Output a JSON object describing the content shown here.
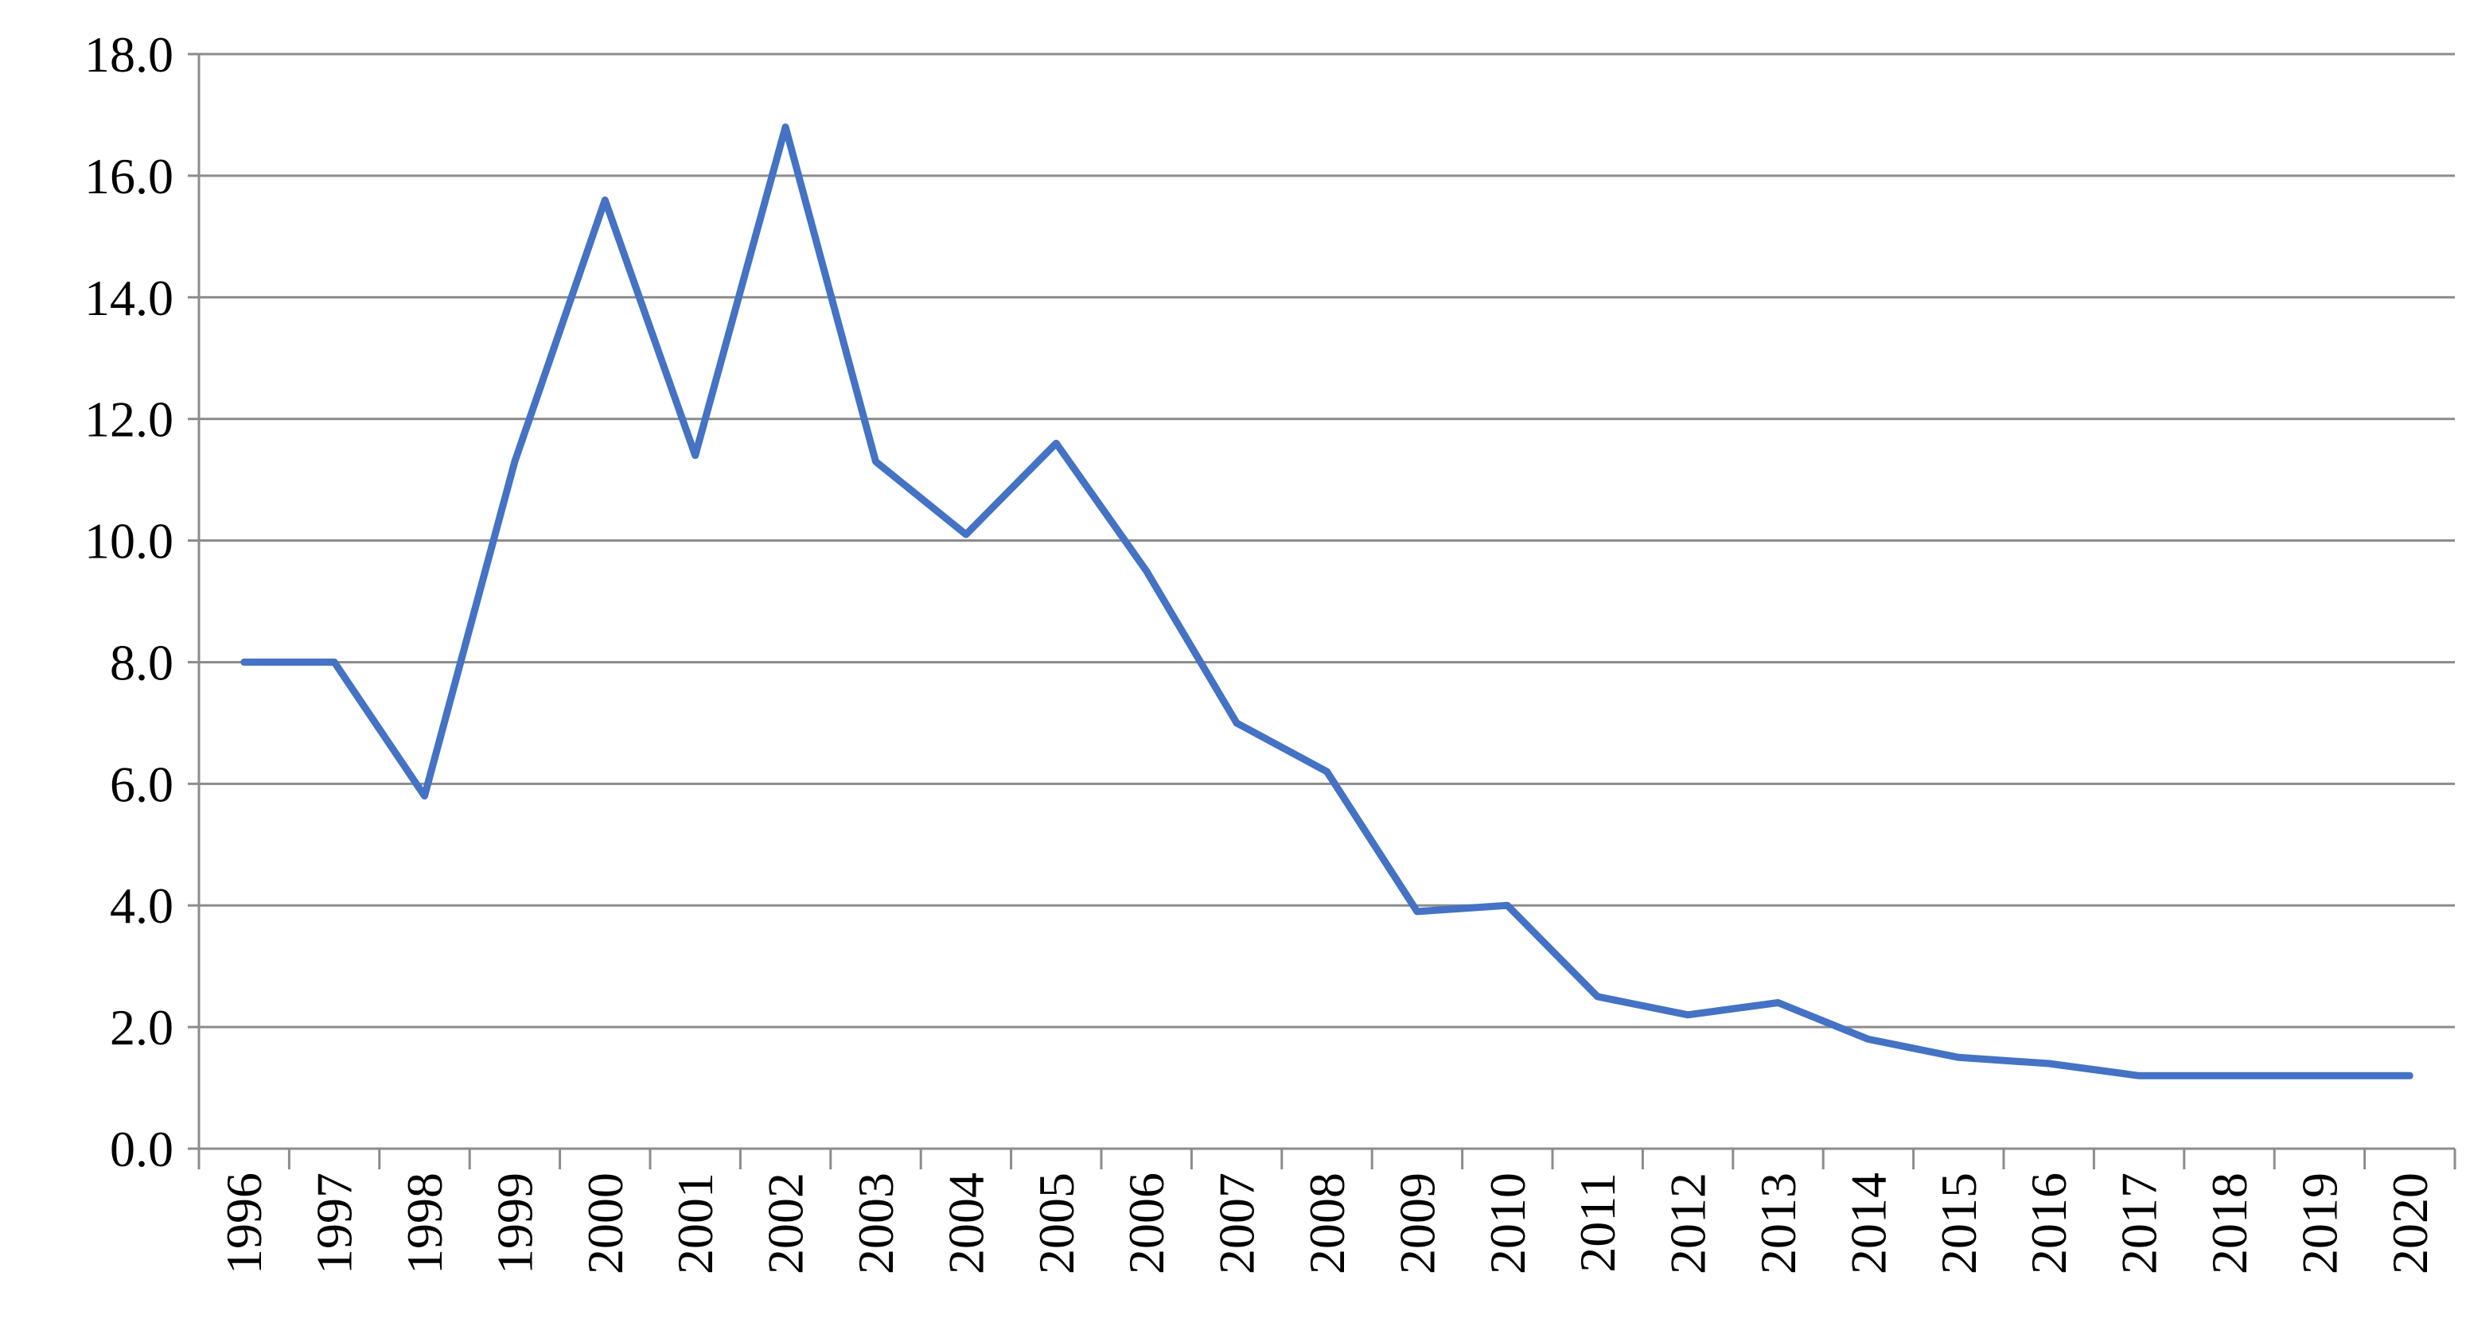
{
  "chart_data": {
    "type": "line",
    "title": "",
    "xlabel": "",
    "ylabel": "",
    "categories": [
      "1996",
      "1997",
      "1998",
      "1999",
      "2000",
      "2001",
      "2002",
      "2003",
      "2004",
      "2005",
      "2006",
      "2007",
      "2008",
      "2009",
      "2010",
      "2011",
      "2012",
      "2013",
      "2014",
      "2015",
      "2016",
      "2017",
      "2018",
      "2019",
      "2020"
    ],
    "series": [
      {
        "color": "#4472c4",
        "values": [
          8.0,
          8.0,
          5.8,
          11.3,
          15.6,
          11.4,
          16.8,
          11.3,
          10.1,
          11.6,
          9.5,
          7.0,
          6.2,
          3.9,
          4.0,
          2.5,
          2.2,
          2.4,
          1.8,
          1.5,
          1.4,
          1.2,
          1.2,
          1.2,
          1.2
        ]
      }
    ],
    "ylim": [
      0,
      18
    ],
    "yticks": [
      "0.0",
      "2.0",
      "4.0",
      "6.0",
      "8.0",
      "10.0",
      "12.0",
      "14.0",
      "16.0",
      "18.0"
    ],
    "grid": true,
    "legend": "none"
  }
}
